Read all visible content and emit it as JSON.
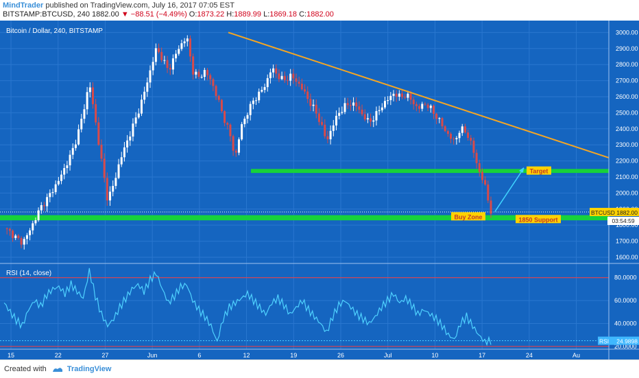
{
  "header": {
    "author": "MindTrader",
    "published": "published on TradingView.com, July 16, 2017 07:05 EST",
    "symbol": "BITSTAMP:BTCUSD, 240",
    "last": "1882.00",
    "change_arrow": "▼",
    "change": "−88.51 (−4.49%)",
    "open_label": "O:",
    "open": "1873.22",
    "high_label": "H:",
    "high": "1889.99",
    "low_label": "L:",
    "low": "1869.18",
    "close_label": "C:",
    "close": "1882.00"
  },
  "footer": {
    "created_with": "Created with",
    "brand": "TradingView",
    "brand_icon": "tradingview-logo-icon"
  },
  "colors": {
    "background": "#1565c0",
    "candle_up": "#ffffff",
    "candle_down": "#d84a4a",
    "trendline": "#f5a623",
    "zone": "#17d23a",
    "rsi_line": "#4fd2ff",
    "rsi_band": "#ff3b3b",
    "label_bg": "#ffd200",
    "label_text": "#c0392b",
    "arrow": "#3fd4ff"
  },
  "chart_data": [
    {
      "type": "candlestick",
      "title": "Bitcoin / Dollar, 240, BITSTAMP",
      "y_ticks": [
        "3000.00",
        "2900.00",
        "2800.00",
        "2700.00",
        "2600.00",
        "2500.00",
        "2400.00",
        "2300.00",
        "2200.00",
        "2100.00",
        "2000.00",
        "1900.00",
        "1800.00",
        "1700.00",
        "1600.00"
      ],
      "ylim": [
        1570,
        3040
      ],
      "x_ticks": [
        "15",
        "22",
        "27",
        "Jun",
        "6",
        "12",
        "19",
        "26",
        "Jul",
        "10",
        "17",
        "24",
        "Au"
      ],
      "price_path": [
        1780,
        1755,
        1720,
        1690,
        1750,
        1830,
        1910,
        1960,
        2020,
        2080,
        2160,
        2240,
        2350,
        2500,
        2690,
        2450,
        2200,
        1960,
        2050,
        2200,
        2300,
        2400,
        2500,
        2620,
        2760,
        2900,
        2840,
        2760,
        2850,
        2920,
        2975,
        2760,
        2720,
        2760,
        2700,
        2600,
        2480,
        2380,
        2220,
        2420,
        2500,
        2580,
        2620,
        2680,
        2780,
        2730,
        2700,
        2730,
        2700,
        2650,
        2580,
        2520,
        2440,
        2320,
        2420,
        2500,
        2540,
        2560,
        2540,
        2480,
        2440,
        2480,
        2540,
        2580,
        2620,
        2600,
        2610,
        2580,
        2520,
        2560,
        2530,
        2480,
        2420,
        2360,
        2320,
        2400,
        2380,
        2280,
        2140,
        2050,
        1882
      ],
      "trendline": {
        "from_price": 3000,
        "to_price": 2220
      },
      "current_price": "1882.00",
      "current_label": "BTCUSD",
      "countdown": "03:54:59",
      "zones": [
        {
          "name": "target-zone",
          "low": 2125,
          "high": 2150
        },
        {
          "name": "support-zone",
          "low": 1830,
          "high": 1862
        }
      ],
      "annotations": {
        "target": "Target",
        "buy_zone": "Buy Zone",
        "support": "1850 Support"
      }
    },
    {
      "type": "line",
      "title": "RSI (14, close)",
      "y_ticks": [
        "80.0000",
        "60.0000",
        "40.0000",
        "20.0000"
      ],
      "ylim": [
        17,
        90
      ],
      "bands": [
        80,
        20
      ],
      "current_value": "24.9898",
      "current_label": "RSI",
      "values": [
        58,
        50,
        43,
        38,
        52,
        60,
        55,
        65,
        70,
        72,
        66,
        74,
        68,
        62,
        86,
        64,
        48,
        38,
        44,
        54,
        62,
        70,
        74,
        68,
        78,
        84,
        70,
        58,
        64,
        72,
        74,
        60,
        52,
        46,
        38,
        24,
        44,
        54,
        58,
        62,
        66,
        60,
        54,
        48,
        58,
        62,
        56,
        48,
        54,
        60,
        52,
        46,
        40,
        32,
        46,
        56,
        60,
        54,
        48,
        44,
        40,
        46,
        54,
        60,
        66,
        58,
        62,
        56,
        48,
        52,
        48,
        44,
        38,
        30,
        26,
        40,
        46,
        38,
        30,
        24,
        25
      ]
    }
  ]
}
